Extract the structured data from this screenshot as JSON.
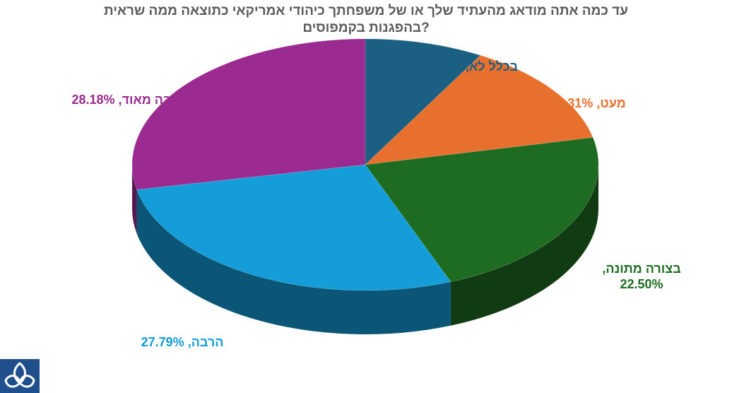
{
  "chart_data": {
    "type": "pie",
    "title_lines": [
      "עד כמה אתה מודאג מהעתיד שלך או של משפחתך כיהודי אמריקאי כתוצאה ממה שראית",
      "בהפגנות בקמפוסים?"
    ],
    "slices": [
      {
        "label": "בכלל לא",
        "value": 8.22,
        "value_text": "8.22%",
        "color": "#1b5f82"
      },
      {
        "label": "מעט",
        "value": 13.31,
        "value_text": "13.31%",
        "color": "#e8702e"
      },
      {
        "label": "בצורה מתונה",
        "value": 22.5,
        "value_text": "22.50%",
        "color": "#1e6b22"
      },
      {
        "label": "הרבה",
        "value": 27.79,
        "value_text": "27.79%",
        "color": "#149dd8"
      },
      {
        "label": "הרבה מאוד",
        "value": 28.18,
        "value_text": "28.18%",
        "color": "#9b2b91"
      }
    ],
    "style": "3d"
  },
  "logo": {
    "icon": "trefoil-logo-icon",
    "color": "#1f4f8c"
  }
}
